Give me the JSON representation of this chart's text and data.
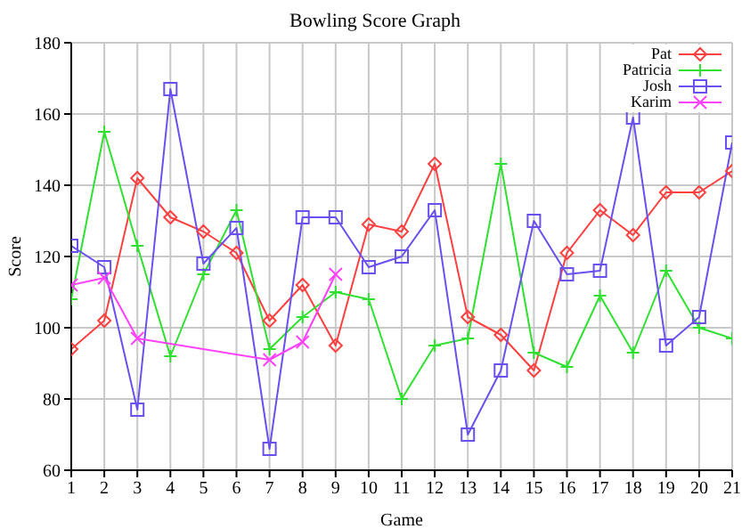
{
  "chart_data": {
    "type": "line",
    "title": "Bowling Score Graph",
    "xlabel": "Game",
    "ylabel": "Score",
    "x": [
      1,
      2,
      3,
      4,
      5,
      6,
      7,
      8,
      9,
      10,
      11,
      12,
      13,
      14,
      15,
      16,
      17,
      18,
      19,
      20,
      21
    ],
    "xlim": [
      1,
      21
    ],
    "xticks": [
      1,
      2,
      3,
      4,
      5,
      6,
      7,
      8,
      9,
      10,
      11,
      12,
      13,
      14,
      15,
      16,
      17,
      18,
      19,
      20,
      21
    ],
    "ylim": [
      60,
      180
    ],
    "yticks": [
      60,
      80,
      100,
      120,
      140,
      160,
      180
    ],
    "grid": true,
    "legend": "top right",
    "series": [
      {
        "name": "Pat",
        "color": "#ff4040",
        "marker": "diamond",
        "values": [
          94,
          102,
          142,
          131,
          127,
          121,
          102,
          112,
          95,
          129,
          127,
          146,
          103,
          98,
          88,
          121,
          133,
          126,
          138,
          138,
          144
        ]
      },
      {
        "name": "Patricia",
        "color": "#30e030",
        "marker": "cross",
        "values": [
          108,
          155,
          123,
          92,
          115,
          133,
          94,
          103,
          110,
          108,
          80,
          95,
          97,
          146,
          93,
          89,
          109,
          93,
          116,
          100,
          97
        ]
      },
      {
        "name": "Josh",
        "color": "#6a50f0",
        "marker": "square",
        "values": [
          123,
          117,
          77,
          167,
          118,
          128,
          66,
          131,
          131,
          117,
          120,
          133,
          70,
          88,
          130,
          115,
          116,
          159,
          95,
          103,
          152
        ]
      },
      {
        "name": "Karim",
        "color": "#ff40ff",
        "marker": "cross",
        "x": [
          1,
          2,
          3,
          7,
          8,
          9
        ],
        "values": [
          112,
          114,
          97,
          91,
          96,
          115
        ]
      }
    ]
  }
}
